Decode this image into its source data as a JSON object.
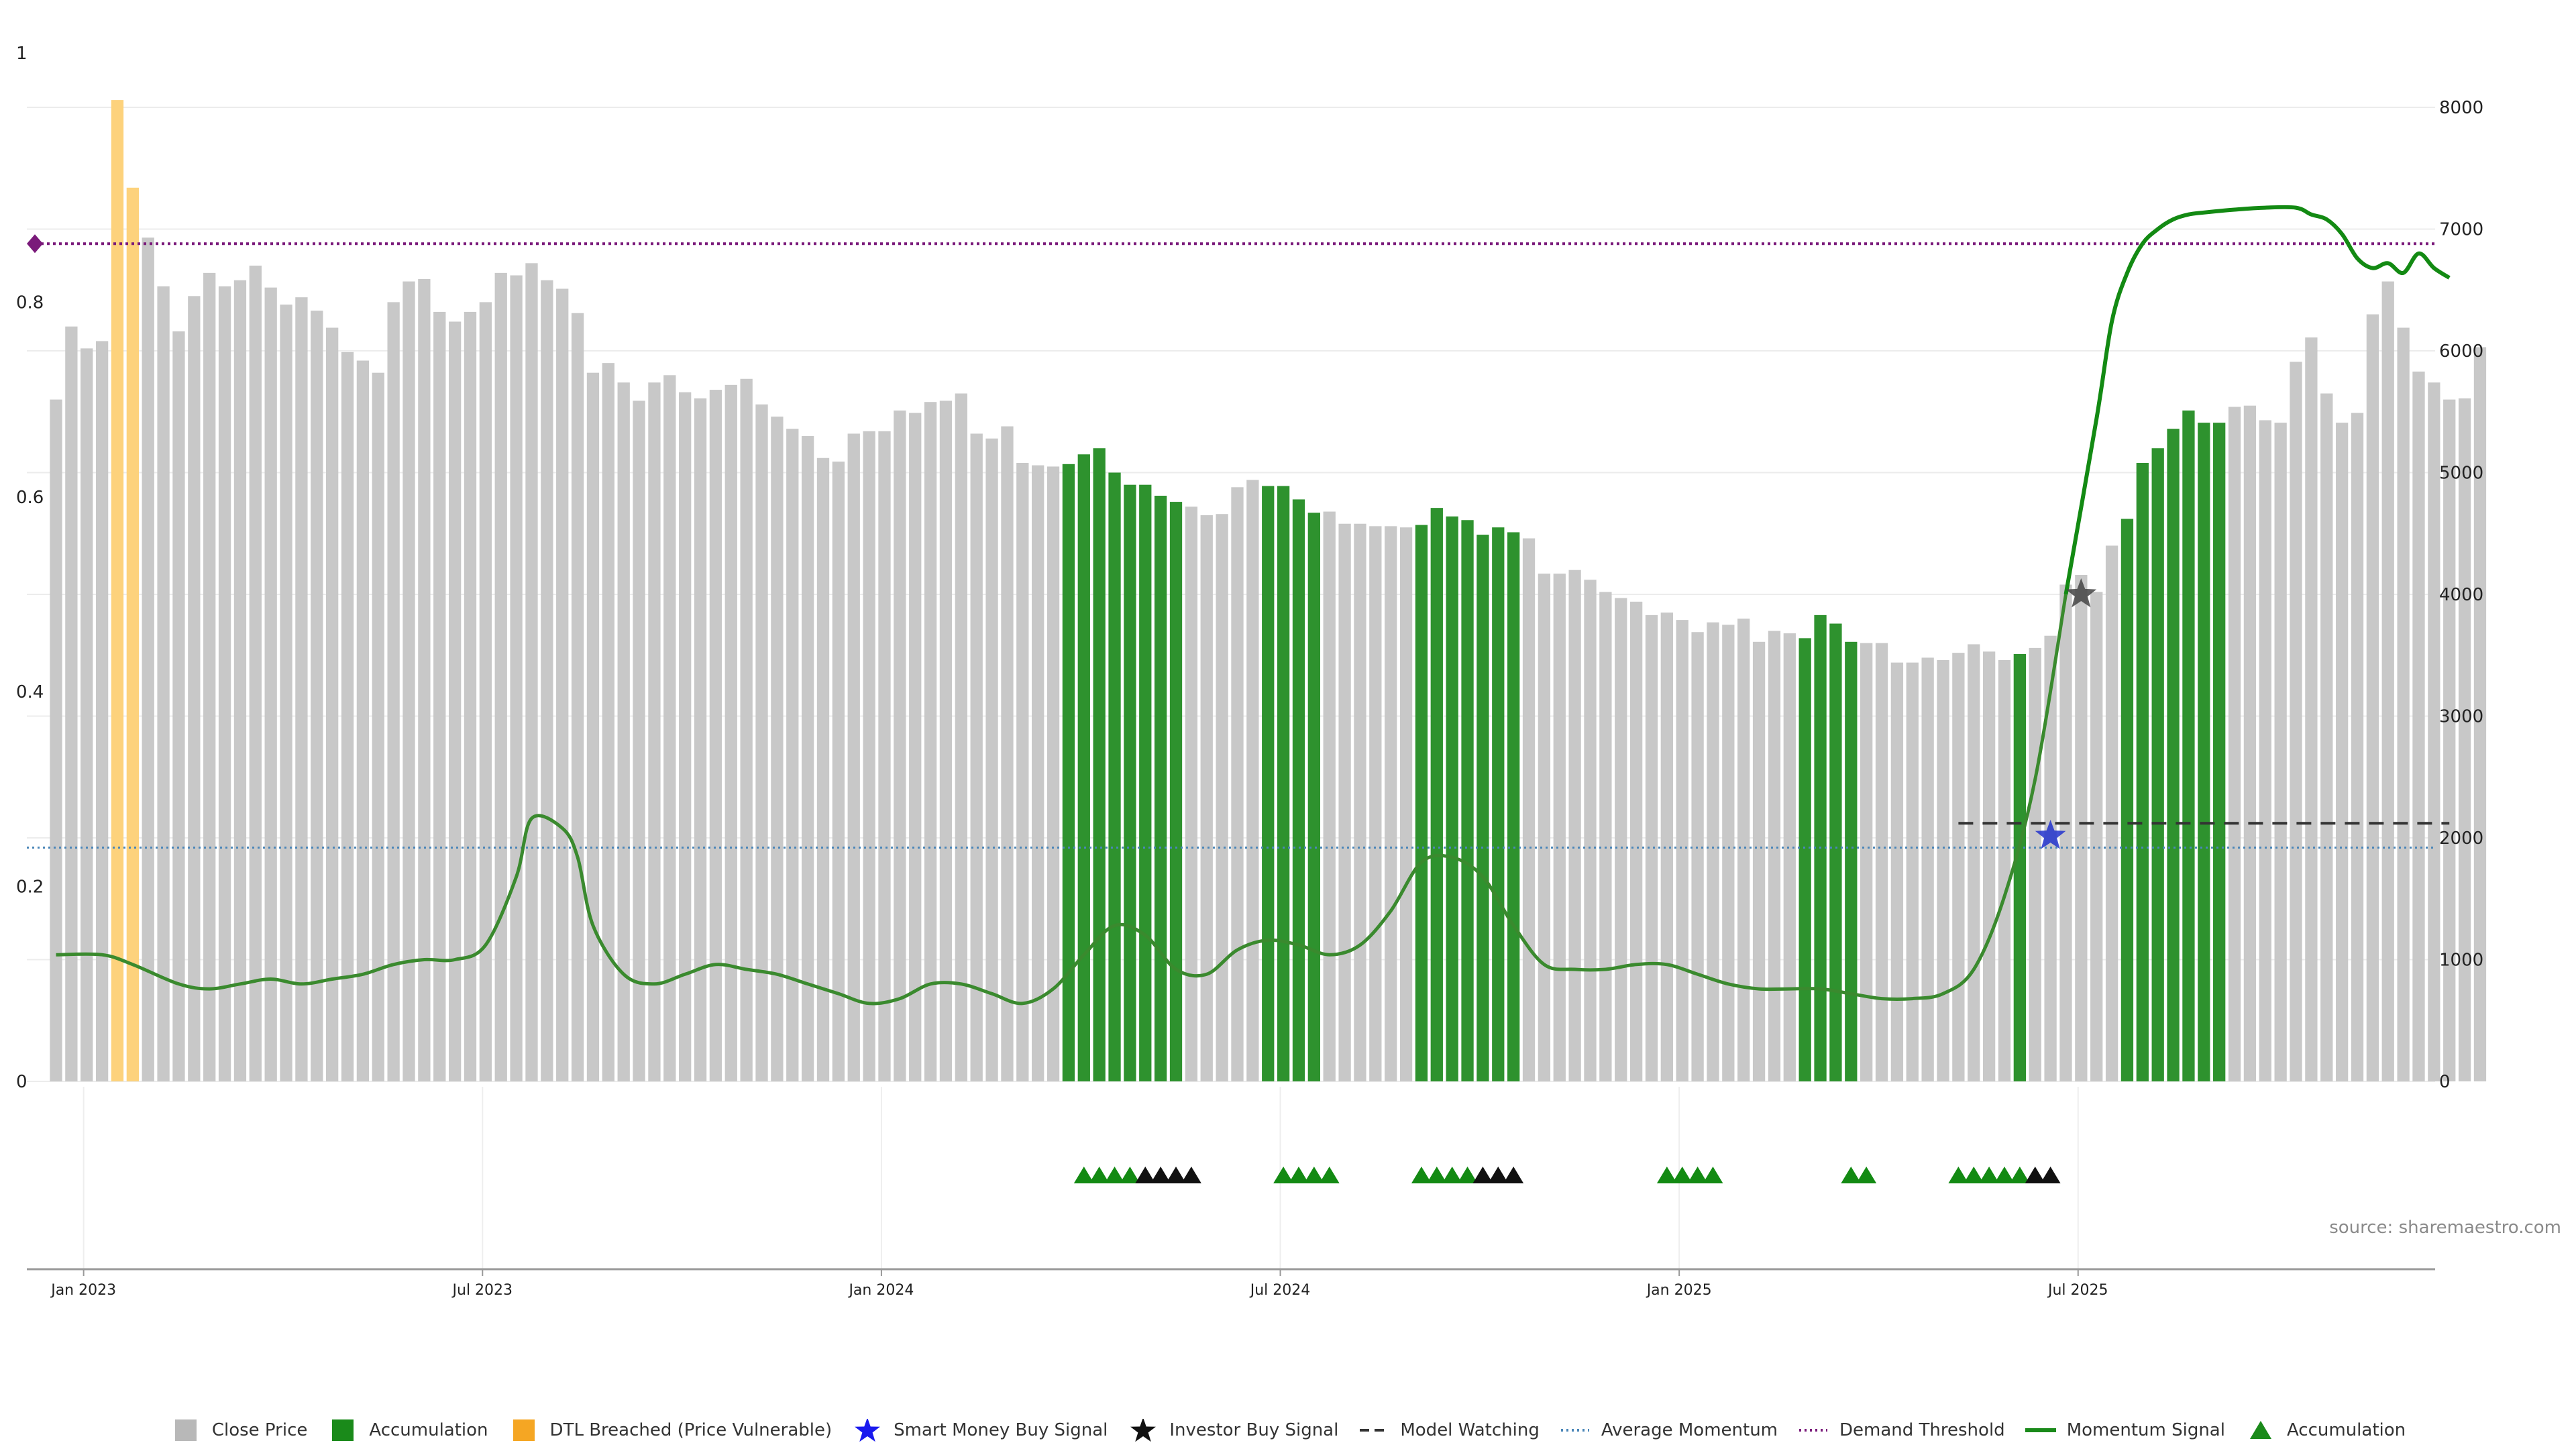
{
  "chart_data": {
    "type": "bar",
    "title": "",
    "source": "source: sharemaestro.com",
    "left_axis": {
      "ticks": [
        "0",
        "0.2",
        "0.4",
        "0.6",
        "0.8",
        "1"
      ],
      "ylim": [
        0,
        1
      ]
    },
    "right_axis": {
      "ticks": [
        "0",
        "1000",
        "2000",
        "3000",
        "4000",
        "5000",
        "6000",
        "7000",
        "8000"
      ],
      "ylim": [
        0,
        8000
      ]
    },
    "x_ticks": [
      "Jan 2023",
      "Jul 2023",
      "Jan 2024",
      "Jul 2024",
      "Jan 2025",
      "Jul 2025"
    ],
    "grid": true,
    "close_price_weekly": [
      5600,
      6200,
      6020,
      6080,
      8060,
      7340,
      6930,
      6530,
      6160,
      6450,
      6640,
      6530,
      6580,
      6700,
      6520,
      6380,
      6440,
      6330,
      6190,
      5990,
      5920,
      5820,
      6400,
      6570,
      6590,
      6320,
      6240,
      6320,
      6400,
      6640,
      6620,
      6720,
      6580,
      6510,
      6310,
      5820,
      5900,
      5740,
      5590,
      5740,
      5800,
      5660,
      5610,
      5680,
      5720,
      5770,
      5560,
      5460,
      5360,
      5300,
      5120,
      5090,
      5320,
      5340,
      5340,
      5510,
      5490,
      5580,
      5590,
      5650,
      5320,
      5280,
      5380,
      5080,
      5060,
      5050,
      5070,
      5150,
      5200,
      5000,
      4900,
      4900,
      4810,
      4760,
      4720,
      4650,
      4660,
      4880,
      4940,
      4890,
      4890,
      4780,
      4670,
      4680,
      4580,
      4580,
      4560,
      4560,
      4550,
      4570,
      4710,
      4640,
      4610,
      4490,
      4550,
      4510,
      4460,
      4170,
      4170,
      4200,
      4120,
      4020,
      3970,
      3940,
      3830,
      3850,
      3790,
      3690,
      3770,
      3750,
      3800,
      3610,
      3700,
      3680,
      3640,
      3830,
      3760,
      3610,
      3600,
      3600,
      3440,
      3440,
      3480,
      3460,
      3520,
      3590,
      3530,
      3460,
      3510,
      3560,
      3660,
      4080,
      4160,
      4020,
      4400,
      4620,
      5080,
      5200,
      5360,
      5510,
      5410,
      5410,
      5540,
      5550,
      5430,
      5410,
      5910,
      6110,
      5650,
      5410,
      5490,
      6300,
      6570,
      6190,
      5830,
      5740,
      5600,
      5610,
      6030
    ],
    "bar_states_weekly": "NNNNDDNNNNNNNNNNNNNNNNNNNNNNNNNNNNNNNNNNNNNNNNNNNNNNNNNNNNNNNNNNNNAAAAAAAANNNNNAAAANNNNNNAAAAAAANNNNNNNNNNNNNNNNNNAAAANNNNNNNNNNANNNNNNAAAAAAANNNNNNNNNNNNNNNNNNNNNNNNNN",
    "bar_state_key": {
      "N": "Close Price",
      "A": "Accumulation",
      "D": "DTL Breached (Price Vulnerable)"
    },
    "series": [
      {
        "name": "Momentum Signal",
        "axis": "left",
        "color": "#3a8a2e",
        "x_week": [
          0,
          3,
          5,
          8,
          10,
          12,
          14,
          16,
          18,
          20,
          22,
          24,
          26,
          28,
          30,
          31,
          33,
          34,
          35,
          37,
          39,
          41,
          43,
          45,
          47,
          49,
          51,
          53,
          55,
          57,
          59,
          61,
          63,
          65,
          67,
          69,
          71,
          73,
          75,
          77,
          79,
          81,
          83,
          85,
          87,
          89,
          91,
          93,
          95,
          97,
          99,
          101,
          103,
          105,
          107,
          109,
          111,
          113,
          115,
          117,
          119,
          121,
          123,
          125,
          127,
          129,
          131
        ],
        "y": [
          0.13,
          0.13,
          0.12,
          0.1,
          0.095,
          0.1,
          0.105,
          0.1,
          0.105,
          0.11,
          0.12,
          0.125,
          0.125,
          0.14,
          0.21,
          0.27,
          0.26,
          0.23,
          0.16,
          0.11,
          0.1,
          0.11,
          0.12,
          0.115,
          0.11,
          0.1,
          0.09,
          0.08,
          0.085,
          0.1,
          0.1,
          0.09,
          0.08,
          0.095,
          0.13,
          0.16,
          0.15,
          0.115,
          0.11,
          0.135,
          0.145,
          0.14,
          0.13,
          0.14,
          0.175,
          0.225,
          0.23,
          0.21,
          0.16,
          0.12,
          0.115,
          0.115,
          0.12,
          0.12,
          0.11,
          0.1,
          0.095,
          0.095,
          0.095,
          0.09,
          0.085,
          0.085,
          0.09,
          0.115,
          0.19,
          0.31,
          0.5
        ]
      },
      {
        "name": "Momentum Signal (recent)",
        "axis": "left",
        "color": "#138a13",
        "x_week": [
          131,
          133,
          134,
          135,
          136,
          137,
          138,
          139,
          140,
          142,
          144,
          146,
          147,
          148,
          149,
          150,
          151,
          152,
          153,
          154,
          155,
          156
        ],
        "y": [
          0.5,
          0.68,
          0.78,
          0.83,
          0.86,
          0.875,
          0.885,
          0.89,
          0.892,
          0.895,
          0.897,
          0.897,
          0.89,
          0.885,
          0.87,
          0.845,
          0.835,
          0.84,
          0.83,
          0.85,
          0.835,
          0.825
        ]
      }
    ],
    "average_momentum": 0.24,
    "demand_threshold": 0.86,
    "model_watching": {
      "value": 2120,
      "start_week": 124,
      "end_week": 156
    },
    "signals": [
      {
        "name": "Smart Money Buy Signal",
        "week": 130,
        "y_left": 0.252,
        "color": "#2233cc"
      },
      {
        "name": "Investor Buy Signal",
        "week": 132,
        "y_left": 0.5,
        "color": "#444444"
      }
    ],
    "accumulation_marker_weeks": [
      67,
      68,
      69,
      70,
      80,
      81,
      82,
      83,
      89,
      90,
      91,
      92,
      105,
      106,
      107,
      108,
      117,
      118,
      124,
      125,
      126,
      127,
      128
    ],
    "investor_marker_weeks": [
      71,
      72,
      73,
      74,
      93,
      94,
      95,
      129,
      130
    ],
    "legend": [
      {
        "label": "Close Price",
        "symbol": "square",
        "color": "#b8b8b8"
      },
      {
        "label": "Accumulation",
        "symbol": "square",
        "color": "#1a8a1a"
      },
      {
        "label": "DTL Breached (Price Vulnerable)",
        "symbol": "square",
        "color": "#f5a623"
      },
      {
        "label": "Smart Money Buy Signal",
        "symbol": "star",
        "color": "#1a1aee"
      },
      {
        "label": "Investor Buy Signal",
        "symbol": "star",
        "color": "#111111"
      },
      {
        "label": "Model Watching",
        "symbol": "dash",
        "color": "#333333"
      },
      {
        "label": "Average Momentum",
        "symbol": "dotted",
        "color": "#4a86b8"
      },
      {
        "label": "Demand Threshold",
        "symbol": "dotted",
        "color": "#7a1a7a"
      },
      {
        "label": "Momentum Signal",
        "symbol": "line",
        "color": "#1a8a1a"
      },
      {
        "label": "Accumulation",
        "symbol": "triangle",
        "color": "#1a8a1a"
      }
    ]
  }
}
